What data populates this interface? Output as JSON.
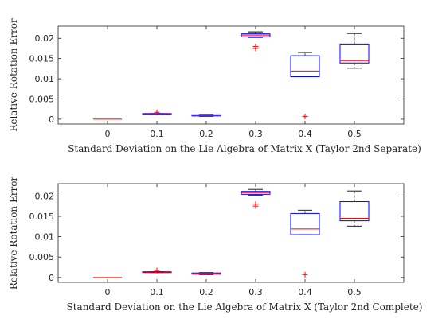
{
  "chart_data": [
    {
      "type": "box",
      "xlabel": "Standard Deviation on the Lie Algebra of Matrix X (Taylor 2nd Separate)",
      "ylabel": "Relative Rotation Error",
      "categories": [
        "0",
        "0.1",
        "0.2",
        "0.3",
        "0.4",
        "0.5"
      ],
      "ylim": [
        -0.0012,
        0.023
      ],
      "yticks": [
        0,
        0.005,
        0.01,
        0.015,
        0.02
      ],
      "ytick_labels": [
        "0",
        "0.005",
        "0.01",
        "0.015",
        "0.02"
      ],
      "boxes": [
        {
          "whislo": 0.0,
          "q1": 0.0,
          "med": 0.0,
          "q3": 0.0,
          "whishi": 0.0,
          "fliers": []
        },
        {
          "whislo": 0.0012,
          "q1": 0.0012,
          "med": 0.0013,
          "q3": 0.0014,
          "whishi": 0.0014,
          "fliers": [
            0.0017
          ]
        },
        {
          "whislo": 0.0007,
          "q1": 0.0008,
          "med": 0.0009,
          "q3": 0.0011,
          "whishi": 0.0012,
          "fliers": []
        },
        {
          "whislo": 0.0202,
          "q1": 0.0204,
          "med": 0.0208,
          "q3": 0.0211,
          "whishi": 0.0216,
          "fliers": [
            0.018,
            0.0175
          ]
        },
        {
          "whislo": 0.0105,
          "q1": 0.0105,
          "med": 0.0119,
          "q3": 0.0157,
          "whishi": 0.0165,
          "fliers": [
            0.0007
          ]
        },
        {
          "whislo": 0.0126,
          "q1": 0.0139,
          "med": 0.0145,
          "q3": 0.0186,
          "whishi": 0.0212,
          "fliers": []
        }
      ],
      "colors": {
        "box": "#0000ff",
        "median": "#ff0000",
        "whisker": "#000000",
        "flier": "#ff0000",
        "axis": "#262626"
      }
    },
    {
      "type": "box",
      "xlabel": "Standard Deviation on the Lie Algebra of Matrix X (Taylor 2nd Complete)",
      "ylabel": "Relative Rotation Error",
      "categories": [
        "0",
        "0.1",
        "0.2",
        "0.3",
        "0.4",
        "0.5"
      ],
      "ylim": [
        -0.0012,
        0.023
      ],
      "yticks": [
        0,
        0.005,
        0.01,
        0.015,
        0.02
      ],
      "ytick_labels": [
        "0",
        "0.005",
        "0.01",
        "0.015",
        "0.02"
      ],
      "boxes": [
        {
          "whislo": 0.0,
          "q1": 0.0,
          "med": 0.0,
          "q3": 0.0,
          "whishi": 0.0,
          "fliers": []
        },
        {
          "whislo": 0.0012,
          "q1": 0.0012,
          "med": 0.0013,
          "q3": 0.0014,
          "whishi": 0.0014,
          "fliers": [
            0.0017
          ]
        },
        {
          "whislo": 0.0007,
          "q1": 0.0008,
          "med": 0.0009,
          "q3": 0.0011,
          "whishi": 0.0012,
          "fliers": []
        },
        {
          "whislo": 0.0202,
          "q1": 0.0204,
          "med": 0.0208,
          "q3": 0.0211,
          "whishi": 0.0216,
          "fliers": [
            0.018,
            0.0175
          ]
        },
        {
          "whislo": 0.0105,
          "q1": 0.0105,
          "med": 0.0119,
          "q3": 0.0157,
          "whishi": 0.0165,
          "fliers": [
            0.0007
          ]
        },
        {
          "whislo": 0.0126,
          "q1": 0.0139,
          "med": 0.0145,
          "q3": 0.0186,
          "whishi": 0.0212,
          "fliers": []
        }
      ],
      "colors": {
        "box": "#0000ff",
        "median": "#ff0000",
        "whisker": "#000000",
        "flier": "#ff0000",
        "axis": "#262626"
      }
    }
  ]
}
